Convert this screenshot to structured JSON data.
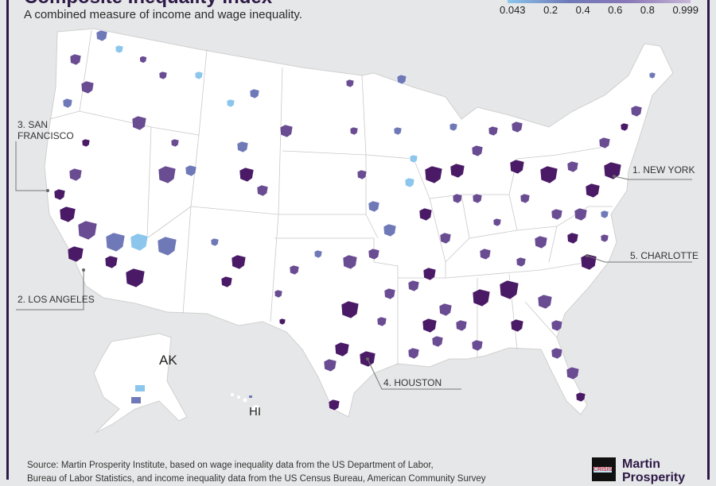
{
  "header": {
    "title": "Composite Inequality Index",
    "subtitle": "A combined measure of income and wage inequality."
  },
  "legend": {
    "ticks": [
      "0.043",
      "0.2",
      "0.4",
      "0.6",
      "0.8",
      "0.999"
    ],
    "colors": [
      "#8cc6ec",
      "#6f79b8",
      "#6a4c93",
      "#4a1a66"
    ]
  },
  "map": {
    "state_labels": {
      "alaska": "AK",
      "hawaii": "HI"
    },
    "callouts": [
      {
        "rank_label": "1. NEW YORK"
      },
      {
        "rank_label": "2. LOS ANGELES"
      },
      {
        "rank_label": "3. SAN FRANCISCO"
      },
      {
        "rank_label": "4. HOUSTON"
      },
      {
        "rank_label": "5. CHARLOTTE"
      }
    ]
  },
  "footer": {
    "source_line1": "Source: Martin Prosperity Institute, based on wage inequality data from the US Department of Labor,",
    "source_line2": "Bureau of Labor Statistics, and income inequality data from the US Census Bureau, American Community Survey",
    "logo_book_text": "CRISIS",
    "logo_text_line1": "Martin",
    "logo_text_line2": "Prosperity"
  }
}
